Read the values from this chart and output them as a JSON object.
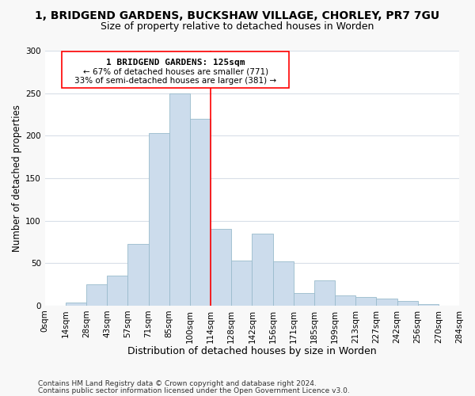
{
  "title": "1, BRIDGEND GARDENS, BUCKSHAW VILLAGE, CHORLEY, PR7 7GU",
  "subtitle": "Size of property relative to detached houses in Worden",
  "xlabel": "Distribution of detached houses by size in Worden",
  "ylabel": "Number of detached properties",
  "bar_color": "#ccdcec",
  "bar_edge_color": "#99bbcc",
  "bins": [
    "0sqm",
    "14sqm",
    "28sqm",
    "43sqm",
    "57sqm",
    "71sqm",
    "85sqm",
    "100sqm",
    "114sqm",
    "128sqm",
    "142sqm",
    "156sqm",
    "171sqm",
    "185sqm",
    "199sqm",
    "213sqm",
    "227sqm",
    "242sqm",
    "256sqm",
    "270sqm",
    "284sqm"
  ],
  "values": [
    0,
    4,
    25,
    35,
    73,
    203,
    250,
    220,
    90,
    53,
    85,
    52,
    15,
    30,
    12,
    10,
    8,
    5,
    2,
    0
  ],
  "ylim": [
    0,
    300
  ],
  "yticks": [
    0,
    50,
    100,
    150,
    200,
    250,
    300
  ],
  "property_line_x": 8.0,
  "property_line_label": "1 BRIDGEND GARDENS: 125sqm",
  "annotation_line1": "← 67% of detached houses are smaller (771)",
  "annotation_line2": "33% of semi-detached houses are larger (381) →",
  "footer1": "Contains HM Land Registry data © Crown copyright and database right 2024.",
  "footer2": "Contains public sector information licensed under the Open Government Licence v3.0.",
  "background_color": "#f8f8f8",
  "plot_bg_color": "#ffffff",
  "grid_color": "#d8dfe8",
  "title_fontsize": 10,
  "subtitle_fontsize": 9,
  "xlabel_fontsize": 9,
  "ylabel_fontsize": 8.5,
  "tick_fontsize": 7.5,
  "footer_fontsize": 6.5
}
